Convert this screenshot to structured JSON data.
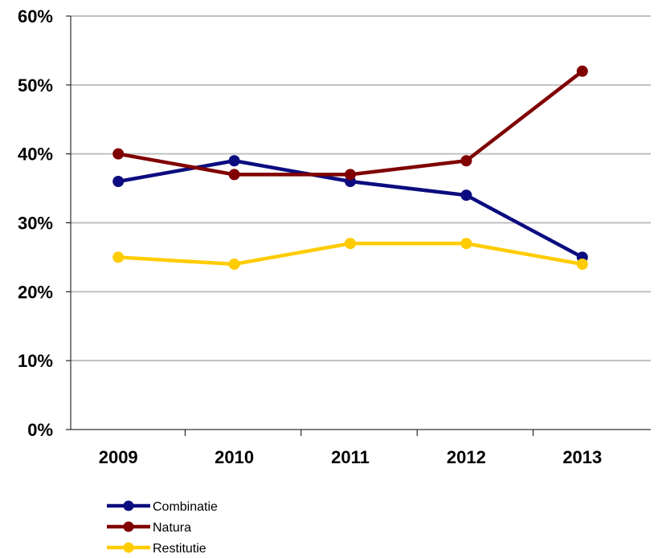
{
  "chart_data": {
    "type": "line",
    "categories": [
      "2009",
      "2010",
      "2011",
      "2012",
      "2013"
    ],
    "y_ticks": [
      "0%",
      "10%",
      "20%",
      "30%",
      "40%",
      "50%",
      "60%"
    ],
    "ylim": [
      0,
      60
    ],
    "y_unit": "%",
    "grid": true,
    "legend_position": "bottom-left",
    "series": [
      {
        "name": "Combinatie",
        "color": "#0c0c80",
        "values": [
          36,
          39,
          36,
          34,
          25
        ]
      },
      {
        "name": "Natura",
        "color": "#800000",
        "values": [
          40,
          37,
          37,
          39,
          52
        ]
      },
      {
        "name": "Restitutie",
        "color": "#ffcc00",
        "values": [
          25,
          24,
          27,
          27,
          24
        ]
      }
    ]
  }
}
